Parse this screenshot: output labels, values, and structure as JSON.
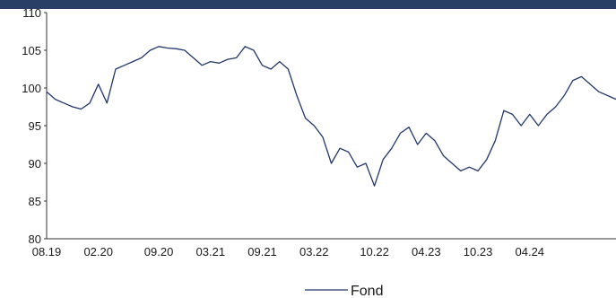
{
  "colors": {
    "header_band": "#2a3f66",
    "series_line": "#22386a",
    "axis": "#333333",
    "background": "#ffffff"
  },
  "chart_data": {
    "type": "line",
    "title": "",
    "xlabel": "",
    "ylabel": "",
    "ylim": [
      80,
      110
    ],
    "yticks": [
      80,
      85,
      90,
      95,
      100,
      105,
      110
    ],
    "xlim": [
      "2019-08",
      "2025-02"
    ],
    "xticks": [
      "08.19",
      "02.20",
      "09.20",
      "03.21",
      "09.21",
      "03.22",
      "10.22",
      "04.23",
      "10.23",
      "04.24"
    ],
    "grid": false,
    "legend_position": "bottom-center",
    "series": [
      {
        "name": "Fond",
        "color": "#22386a",
        "points": [
          [
            "2019-08",
            99.5
          ],
          [
            "2019-09",
            98.5
          ],
          [
            "2019-10",
            98.0
          ],
          [
            "2019-11",
            97.5
          ],
          [
            "2019-12",
            97.2
          ],
          [
            "2020-01",
            98.0
          ],
          [
            "2020-02",
            100.5
          ],
          [
            "2020-03",
            98.0
          ],
          [
            "2020-04",
            102.5
          ],
          [
            "2020-05",
            103.0
          ],
          [
            "2020-06",
            103.5
          ],
          [
            "2020-07",
            104.0
          ],
          [
            "2020-08",
            105.0
          ],
          [
            "2020-09",
            105.5
          ],
          [
            "2020-10",
            105.3
          ],
          [
            "2020-11",
            105.2
          ],
          [
            "2020-12",
            105.0
          ],
          [
            "2021-01",
            104.0
          ],
          [
            "2021-02",
            103.0
          ],
          [
            "2021-03",
            103.5
          ],
          [
            "2021-04",
            103.3
          ],
          [
            "2021-05",
            103.8
          ],
          [
            "2021-06",
            104.0
          ],
          [
            "2021-07",
            105.5
          ],
          [
            "2021-08",
            105.0
          ],
          [
            "2021-09",
            103.0
          ],
          [
            "2021-10",
            102.5
          ],
          [
            "2021-11",
            103.5
          ],
          [
            "2021-12",
            102.5
          ],
          [
            "2022-01",
            99.0
          ],
          [
            "2022-02",
            96.0
          ],
          [
            "2022-03",
            95.0
          ],
          [
            "2022-04",
            93.5
          ],
          [
            "2022-05",
            90.0
          ],
          [
            "2022-06",
            92.0
          ],
          [
            "2022-07",
            91.5
          ],
          [
            "2022-08",
            89.5
          ],
          [
            "2022-09",
            90.0
          ],
          [
            "2022-10",
            87.0
          ],
          [
            "2022-11",
            90.5
          ],
          [
            "2022-12",
            92.0
          ],
          [
            "2023-01",
            94.0
          ],
          [
            "2023-02",
            94.8
          ],
          [
            "2023-03",
            92.5
          ],
          [
            "2023-04",
            94.0
          ],
          [
            "2023-05",
            93.0
          ],
          [
            "2023-06",
            91.0
          ],
          [
            "2023-07",
            90.0
          ],
          [
            "2023-08",
            89.0
          ],
          [
            "2023-09",
            89.5
          ],
          [
            "2023-10",
            89.0
          ],
          [
            "2023-11",
            90.5
          ],
          [
            "2023-12",
            93.0
          ],
          [
            "2024-01",
            97.0
          ],
          [
            "2024-02",
            96.5
          ],
          [
            "2024-03",
            95.0
          ],
          [
            "2024-04",
            96.5
          ],
          [
            "2024-05",
            95.0
          ],
          [
            "2024-06",
            96.5
          ],
          [
            "2024-07",
            97.5
          ],
          [
            "2024-08",
            99.0
          ],
          [
            "2024-09",
            101.0
          ],
          [
            "2024-10",
            101.5
          ],
          [
            "2024-11",
            100.5
          ],
          [
            "2024-12",
            99.5
          ],
          [
            "2025-01",
            99.0
          ],
          [
            "2025-02",
            98.5
          ]
        ]
      }
    ]
  }
}
